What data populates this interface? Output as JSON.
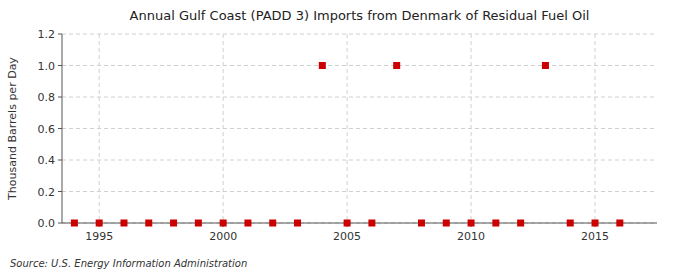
{
  "chart_data": {
    "type": "scatter",
    "title": "Annual Gulf Coast (PADD 3) Imports from Denmark of Residual Fuel Oil",
    "ylabel": "Thousand Barrels per Day",
    "annotations": [
      "Source: U.S. Energy Information Administration"
    ],
    "x": [
      1994,
      1995,
      1996,
      1997,
      1998,
      1999,
      2000,
      2001,
      2002,
      2003,
      2004,
      2005,
      2006,
      2007,
      2008,
      2009,
      2010,
      2011,
      2012,
      2013,
      2014,
      2015,
      2016
    ],
    "values": [
      0,
      0,
      0,
      0,
      0,
      0,
      0,
      0,
      0,
      0,
      1.0,
      0,
      0,
      1.0,
      0,
      0,
      0,
      0,
      0,
      1.0,
      0,
      0,
      0
    ],
    "color": "#cc0000",
    "marker": "square",
    "xlim": [
      1993.5,
      2017.5
    ],
    "ylim": [
      0,
      1.2
    ],
    "xticks": [
      1995,
      2000,
      2005,
      2010,
      2015
    ],
    "yticks": [
      {
        "value": 0.0,
        "label": "0.0"
      },
      {
        "value": 0.2,
        "label": "0.2"
      },
      {
        "value": 0.4,
        "label": "0.4"
      },
      {
        "value": 0.6,
        "label": "0.6"
      },
      {
        "value": 0.8,
        "label": "0.8"
      },
      {
        "value": 1.0,
        "label": "1.0"
      },
      {
        "value": 1.2,
        "label": "1.2"
      }
    ],
    "grid": true
  }
}
